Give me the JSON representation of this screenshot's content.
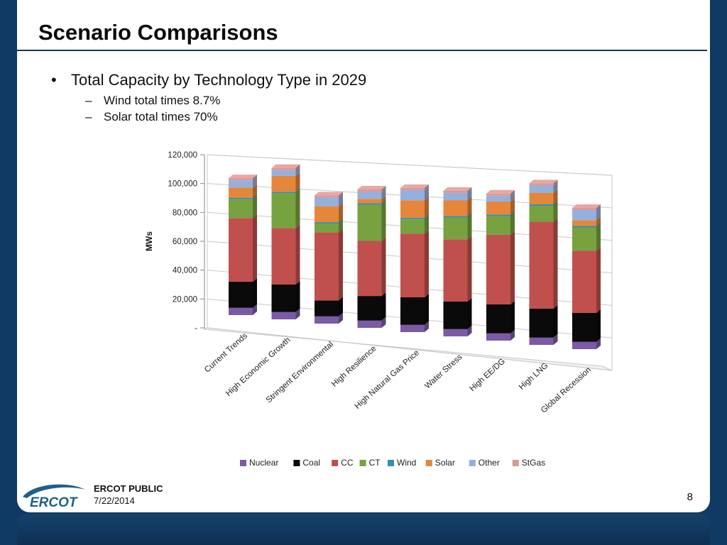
{
  "slide": {
    "title": "Scenario Comparisons",
    "bullet_main": "Total Capacity by Technology Type in 2029",
    "sub_bullets": [
      "Wind total times 8.7%",
      "Solar total times 70%"
    ],
    "bullet_symbol": "•",
    "dash_symbol": "–",
    "footer_label": "ERCOT PUBLIC",
    "footer_date": "7/22/2014",
    "page_number": "8",
    "logo_text": "ERCOT",
    "colors": {
      "background": "#0f3a63",
      "title_rule": "#17375e",
      "logo_blue": "#1f5f8a"
    }
  },
  "chart_data": {
    "type": "bar",
    "stacked": true,
    "three_d": true,
    "ylabel": "MWs",
    "ylim": [
      0,
      120000
    ],
    "yticks": [
      "-",
      "20,000",
      "40,000",
      "60,000",
      "80,000",
      "100,000",
      "120,000"
    ],
    "categories": [
      "Current Trends",
      "High Economic Growth",
      "Stringent Environmental",
      "High Resilience",
      "High Natural Gas Price",
      "Water Stress",
      "High EE/DG",
      "High LNG",
      "Global Recession"
    ],
    "series": [
      {
        "name": "Nuclear",
        "color": "#7b5aa6",
        "values": [
          5000,
          5000,
          5000,
          5000,
          5000,
          5000,
          5000,
          5000,
          5000
        ]
      },
      {
        "name": "Coal",
        "color": "#0a0a0a",
        "values": [
          18000,
          19000,
          11000,
          17000,
          19000,
          19000,
          20000,
          20000,
          20000
        ]
      },
      {
        "name": "CC",
        "color": "#c0504d",
        "values": [
          44000,
          39000,
          47000,
          38000,
          44000,
          43000,
          48000,
          60000,
          43000
        ]
      },
      {
        "name": "CT",
        "color": "#77a23f",
        "values": [
          13000,
          24000,
          6000,
          25000,
          10000,
          15000,
          13000,
          11000,
          16000
        ]
      },
      {
        "name": "Wind",
        "color": "#2f8fb4",
        "values": [
          1000,
          1000,
          1000,
          1000,
          1000,
          1000,
          1000,
          1000,
          1000
        ]
      },
      {
        "name": "Solar",
        "color": "#e5863a",
        "values": [
          7000,
          11000,
          11000,
          3000,
          12000,
          11000,
          9000,
          8000,
          4000
        ]
      },
      {
        "name": "Other",
        "color": "#94b0dd",
        "values": [
          5000,
          4000,
          6000,
          5000,
          7000,
          5000,
          4000,
          5000,
          7000
        ]
      },
      {
        "name": "StGas",
        "color": "#d89a97",
        "values": [
          1500,
          1500,
          1500,
          1500,
          1500,
          1500,
          1500,
          1500,
          1500
        ]
      }
    ],
    "grid": true,
    "legend_position": "bottom"
  }
}
